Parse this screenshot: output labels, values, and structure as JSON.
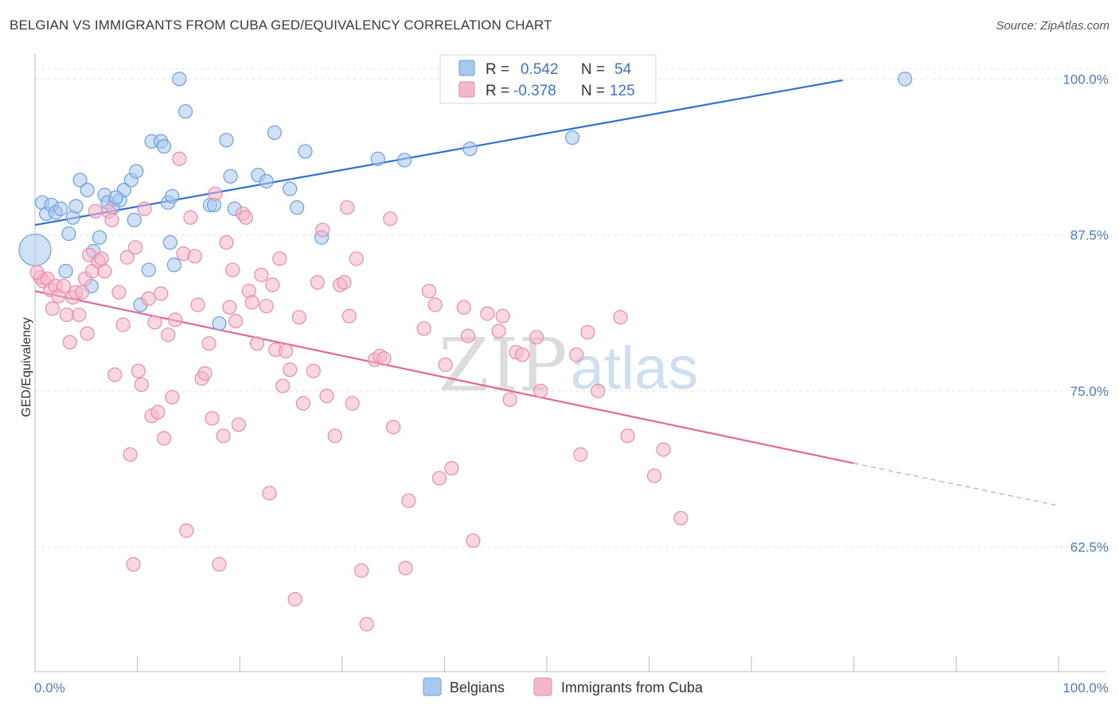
{
  "header": {
    "title": "BELGIAN VS IMMIGRANTS FROM CUBA GED/EQUIVALENCY CORRELATION CHART",
    "source": "Source: ZipAtlas.com"
  },
  "watermark": {
    "zip": "ZIP",
    "atlas": "atlas"
  },
  "legend_top": {
    "rows": [
      {
        "r_label": "R = ",
        "r_value": "0.542",
        "n_label": "N = ",
        "n_value": "54",
        "color": "#a9c8ee"
      },
      {
        "r_label": "R = ",
        "r_value": "-0.378",
        "n_label": "N = ",
        "n_value": "125",
        "color": "#f4b6cb"
      }
    ]
  },
  "chart_data": {
    "type": "scatter",
    "title": "BELGIAN VS IMMIGRANTS FROM CUBA GED/EQUIVALENCY CORRELATION CHART",
    "xlabel": "",
    "ylabel": "GED/Equivalency",
    "xlim": [
      0,
      100
    ],
    "ylim": [
      52.5,
      102.0
    ],
    "x_tick_labels": [
      "0.0%",
      "100.0%"
    ],
    "y_ticks": [
      62.5,
      75.0,
      87.5,
      100.0
    ],
    "y_tick_labels": [
      "62.5%",
      "75.0%",
      "87.5%",
      "100.0%"
    ],
    "grid": "horizontal dashed",
    "legend_placement": "top-center",
    "series": [
      {
        "name": "Belgians",
        "color": "#a9c8ee",
        "stroke": "#6b9fdc",
        "line_color": "#2e6fd1",
        "trend": {
          "x": [
            0,
            78.9
          ],
          "y": [
            88.3,
            99.9
          ]
        },
        "points": [
          [
            0.0,
            86.3
          ],
          [
            0.7,
            90.1
          ],
          [
            1.1,
            89.2
          ],
          [
            1.6,
            89.9
          ],
          [
            2.0,
            89.3
          ],
          [
            2.5,
            89.6
          ],
          [
            3.0,
            84.6
          ],
          [
            3.3,
            87.6
          ],
          [
            3.7,
            88.9
          ],
          [
            4.0,
            89.8
          ],
          [
            4.4,
            91.9
          ],
          [
            5.1,
            91.1
          ],
          [
            5.5,
            83.4
          ],
          [
            6.3,
            87.3
          ],
          [
            6.8,
            90.7
          ],
          [
            7.1,
            90.1
          ],
          [
            7.6,
            89.7
          ],
          [
            8.3,
            90.3
          ],
          [
            8.7,
            91.1
          ],
          [
            9.4,
            91.9
          ],
          [
            9.7,
            88.7
          ],
          [
            9.9,
            92.6
          ],
          [
            10.3,
            81.9
          ],
          [
            11.1,
            84.7
          ],
          [
            11.4,
            95.0
          ],
          [
            12.3,
            95.0
          ],
          [
            12.6,
            94.6
          ],
          [
            13.0,
            90.1
          ],
          [
            13.4,
            90.6
          ],
          [
            13.6,
            85.1
          ],
          [
            14.1,
            100.0
          ],
          [
            14.7,
            97.4
          ],
          [
            17.1,
            89.9
          ],
          [
            17.5,
            89.9
          ],
          [
            18.0,
            80.4
          ],
          [
            18.7,
            95.1
          ],
          [
            19.1,
            92.2
          ],
          [
            19.5,
            89.6
          ],
          [
            21.8,
            92.3
          ],
          [
            22.6,
            91.8
          ],
          [
            23.4,
            95.7
          ],
          [
            24.9,
            91.2
          ],
          [
            25.6,
            89.7
          ],
          [
            26.4,
            94.2
          ],
          [
            28.0,
            87.3
          ],
          [
            33.5,
            93.6
          ],
          [
            36.1,
            93.5
          ],
          [
            42.5,
            94.4
          ],
          [
            51.5,
            100.0
          ],
          [
            52.5,
            95.3
          ],
          [
            85.0,
            100.0
          ],
          [
            13.2,
            86.9
          ],
          [
            7.9,
            90.5
          ],
          [
            5.7,
            86.2
          ]
        ]
      },
      {
        "name": "Immigrants from Cuba",
        "color": "#f4b6cb",
        "stroke": "#e98bab",
        "line_color": "#e0679a",
        "trend": {
          "x": [
            0,
            80.0
          ],
          "y": [
            83.0,
            69.2
          ]
        },
        "trend_dashed": {
          "x": [
            80.0,
            100.0
          ],
          "y": [
            69.2,
            65.8
          ]
        },
        "points": [
          [
            0.5,
            84.1
          ],
          [
            0.8,
            83.8
          ],
          [
            1.2,
            84.0
          ],
          [
            1.5,
            83.1
          ],
          [
            1.7,
            81.6
          ],
          [
            2.0,
            83.4
          ],
          [
            2.3,
            82.6
          ],
          [
            2.8,
            83.4
          ],
          [
            3.1,
            81.1
          ],
          [
            3.4,
            78.9
          ],
          [
            3.7,
            82.5
          ],
          [
            4.0,
            82.9
          ],
          [
            4.3,
            81.1
          ],
          [
            4.6,
            82.9
          ],
          [
            4.9,
            84.0
          ],
          [
            5.1,
            79.6
          ],
          [
            5.3,
            85.9
          ],
          [
            5.6,
            84.6
          ],
          [
            5.9,
            89.4
          ],
          [
            6.2,
            85.4
          ],
          [
            6.5,
            85.6
          ],
          [
            6.8,
            84.6
          ],
          [
            7.2,
            89.4
          ],
          [
            7.5,
            88.7
          ],
          [
            7.8,
            76.3
          ],
          [
            8.2,
            82.9
          ],
          [
            8.6,
            80.3
          ],
          [
            9.0,
            85.7
          ],
          [
            9.3,
            69.9
          ],
          [
            9.6,
            61.1
          ],
          [
            9.8,
            86.5
          ],
          [
            10.1,
            76.6
          ],
          [
            10.4,
            75.5
          ],
          [
            10.7,
            89.6
          ],
          [
            11.1,
            82.4
          ],
          [
            11.4,
            73.0
          ],
          [
            11.7,
            80.5
          ],
          [
            12.0,
            73.3
          ],
          [
            12.3,
            82.8
          ],
          [
            12.6,
            71.2
          ],
          [
            13.0,
            79.5
          ],
          [
            13.4,
            74.5
          ],
          [
            13.7,
            80.7
          ],
          [
            14.1,
            93.6
          ],
          [
            14.5,
            86.0
          ],
          [
            14.8,
            63.8
          ],
          [
            15.2,
            88.9
          ],
          [
            15.6,
            85.8
          ],
          [
            15.9,
            81.9
          ],
          [
            16.3,
            76.0
          ],
          [
            16.6,
            76.4
          ],
          [
            17.0,
            78.8
          ],
          [
            17.3,
            72.8
          ],
          [
            17.6,
            90.8
          ],
          [
            18.0,
            61.1
          ],
          [
            18.4,
            71.4
          ],
          [
            18.7,
            86.9
          ],
          [
            19.0,
            81.7
          ],
          [
            19.3,
            84.7
          ],
          [
            19.6,
            80.6
          ],
          [
            19.9,
            72.3
          ],
          [
            20.3,
            89.2
          ],
          [
            20.6,
            88.9
          ],
          [
            20.9,
            83.0
          ],
          [
            21.2,
            82.1
          ],
          [
            21.7,
            78.8
          ],
          [
            22.1,
            84.3
          ],
          [
            22.6,
            81.8
          ],
          [
            22.9,
            66.8
          ],
          [
            23.2,
            83.5
          ],
          [
            23.5,
            78.3
          ],
          [
            23.9,
            85.6
          ],
          [
            24.2,
            75.4
          ],
          [
            24.5,
            78.2
          ],
          [
            24.9,
            76.7
          ],
          [
            25.4,
            58.3
          ],
          [
            25.8,
            80.9
          ],
          [
            26.2,
            74.0
          ],
          [
            27.2,
            76.6
          ],
          [
            27.6,
            83.7
          ],
          [
            28.1,
            87.9
          ],
          [
            28.5,
            74.6
          ],
          [
            29.3,
            71.4
          ],
          [
            29.8,
            83.5
          ],
          [
            30.2,
            83.7
          ],
          [
            30.5,
            89.7
          ],
          [
            30.7,
            81.0
          ],
          [
            31.0,
            74.0
          ],
          [
            31.4,
            85.6
          ],
          [
            31.9,
            60.6
          ],
          [
            32.4,
            56.3
          ],
          [
            33.2,
            77.5
          ],
          [
            33.7,
            77.8
          ],
          [
            34.1,
            77.6
          ],
          [
            34.7,
            88.8
          ],
          [
            35.0,
            72.1
          ],
          [
            36.2,
            60.8
          ],
          [
            36.5,
            66.2
          ],
          [
            38.0,
            80.0
          ],
          [
            38.5,
            83.0
          ],
          [
            39.1,
            81.9
          ],
          [
            39.5,
            68.0
          ],
          [
            40.1,
            77.1
          ],
          [
            40.7,
            68.8
          ],
          [
            41.9,
            81.7
          ],
          [
            42.3,
            79.4
          ],
          [
            42.8,
            63.0
          ],
          [
            44.2,
            81.2
          ],
          [
            45.3,
            79.8
          ],
          [
            45.7,
            81.0
          ],
          [
            46.4,
            74.3
          ],
          [
            47.0,
            78.1
          ],
          [
            47.6,
            77.9
          ],
          [
            49.0,
            79.3
          ],
          [
            49.4,
            75.0
          ],
          [
            52.9,
            77.9
          ],
          [
            53.3,
            69.9
          ],
          [
            54.0,
            79.7
          ],
          [
            55.0,
            75.0
          ],
          [
            57.2,
            80.9
          ],
          [
            57.9,
            71.4
          ],
          [
            60.5,
            68.2
          ],
          [
            61.4,
            70.3
          ],
          [
            63.1,
            64.8
          ],
          [
            0.2,
            84.5
          ]
        ]
      }
    ]
  },
  "legend_bottom": {
    "items": [
      {
        "label": "Belgians",
        "color": "#a9c8ee"
      },
      {
        "label": "Immigrants from Cuba",
        "color": "#f4b6cb"
      }
    ]
  }
}
